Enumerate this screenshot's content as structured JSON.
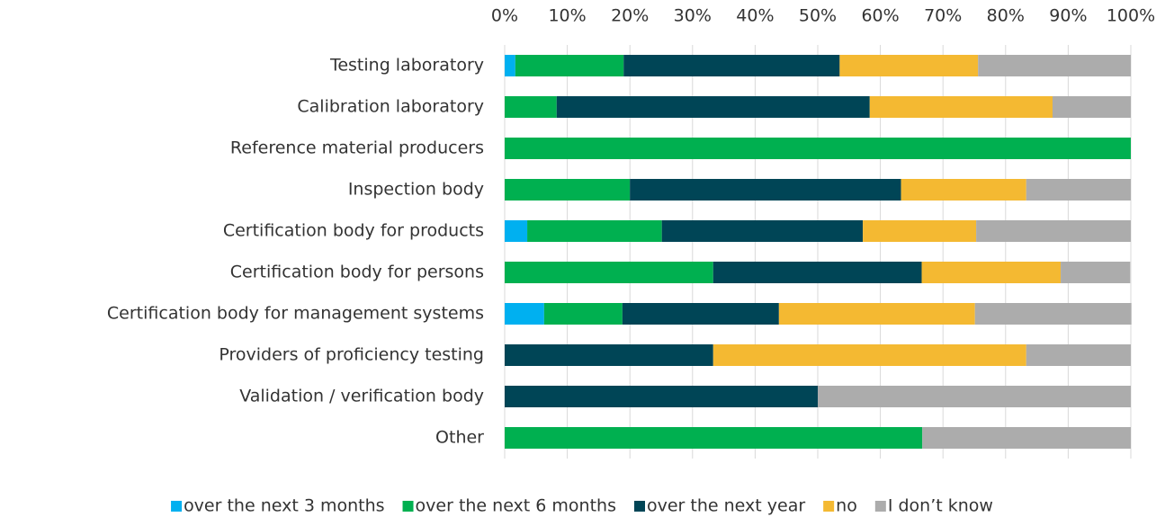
{
  "chart_data": {
    "type": "stacked_bar_horizontal",
    "categories": [
      "Testing laboratory",
      "Calibration laboratory",
      "Reference material producers",
      "Inspection body",
      "Certification body for products",
      "Certification body for persons",
      "Certification body for management systems",
      "Providers of proficiency testing",
      "Validation / verification body",
      "Other"
    ],
    "series": [
      {
        "name": "over the next 3 months",
        "color": "#00b0f0",
        "values": [
          1.7,
          0,
          0,
          0,
          3.6,
          0,
          6.3,
          0,
          0,
          0
        ]
      },
      {
        "name": "over the next 6 months",
        "color": "#00b050",
        "values": [
          17.3,
          8.3,
          100,
          20.0,
          21.5,
          33.3,
          12.5,
          0,
          0,
          66.7
        ]
      },
      {
        "name": "over the next year",
        "color": "#004556",
        "values": [
          34.5,
          50.0,
          0,
          43.3,
          32.1,
          33.3,
          25.0,
          33.3,
          50.0,
          0
        ]
      },
      {
        "name": "no",
        "color": "#f4b932",
        "values": [
          22.1,
          29.2,
          0,
          20.0,
          18.1,
          22.2,
          31.3,
          50.0,
          0,
          0
        ]
      },
      {
        "name": "I don’t know",
        "color": "#acacac",
        "values": [
          24.4,
          12.5,
          0,
          16.7,
          24.7,
          11.1,
          25.0,
          16.7,
          50.0,
          33.3
        ]
      }
    ],
    "xlim": [
      0,
      100
    ],
    "xticks": [
      {
        "value": 0,
        "label": "0%"
      },
      {
        "value": 10,
        "label": "10%"
      },
      {
        "value": 20,
        "label": "20%"
      },
      {
        "value": 30,
        "label": "30%"
      },
      {
        "value": 40,
        "label": "40%"
      },
      {
        "value": 50,
        "label": "50%"
      },
      {
        "value": 60,
        "label": "60%"
      },
      {
        "value": 70,
        "label": "70%"
      },
      {
        "value": 80,
        "label": "80%"
      },
      {
        "value": 90,
        "label": "90%"
      },
      {
        "value": 100,
        "label": "100%"
      }
    ],
    "grid": true,
    "legend": "bottom"
  }
}
